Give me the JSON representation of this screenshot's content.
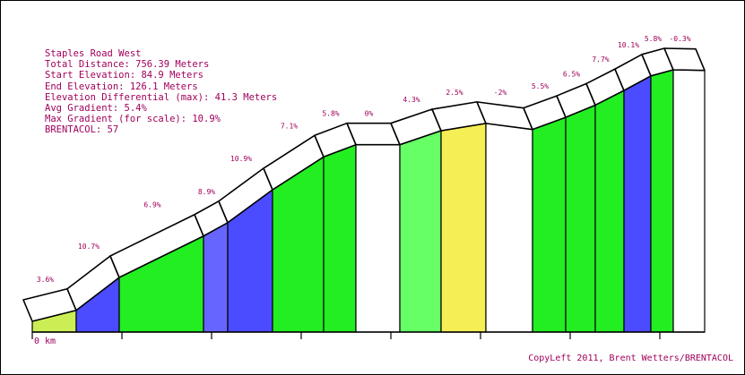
{
  "info": {
    "road_name": "Staples Road West",
    "total_distance": "Total Distance: 756.39 Meters",
    "start_elevation": "Start Elevation: 84.9 Meters",
    "end_elevation": "End Elevation: 126.1 Meters",
    "elevation_differential": "Elevation Differential (max): 41.3 Meters",
    "avg_gradient": "Avg Gradient: 5.4%",
    "max_gradient": "Max Gradient (for scale): 10.9%",
    "brentacol": "BRENTACOL: 57"
  },
  "credit": "CopyLeft 2011, Brent Wetters/BRENTACOL",
  "chart_data": {
    "type": "area",
    "x_unit": "m",
    "y_unit": "m",
    "start_label": "0 km",
    "ylim": [
      84.9,
      126.2
    ],
    "segments": [
      {
        "label": "3.6%",
        "gradient": 3.6,
        "color": "#ccee55",
        "from_elev": 84.9,
        "to_elev": 86.7
      },
      {
        "label": "10.7%",
        "gradient": 10.7,
        "color": "#4b4bff",
        "from_elev": 86.7,
        "to_elev": 92.1
      },
      {
        "label": "6.9%",
        "gradient": 6.9,
        "color": "#22ee22",
        "from_elev": 92.1,
        "to_elev": 98.9
      },
      {
        "label": "8.9%",
        "gradient": 8.9,
        "color": "#6666ff",
        "from_elev": 98.9,
        "to_elev": 101.1
      },
      {
        "label": "10.9%",
        "gradient": 10.9,
        "color": "#4b4bff",
        "from_elev": 101.1,
        "to_elev": 106.5
      },
      {
        "label": "7.1%",
        "gradient": 7.1,
        "color": "#22ee22",
        "from_elev": 106.5,
        "to_elev": 111.9
      },
      {
        "label": "5.8%",
        "gradient": 5.8,
        "color": "#22ee22",
        "from_elev": 111.9,
        "to_elev": 113.9
      },
      {
        "label": "0%",
        "gradient": 0.0,
        "color": "#ffffff",
        "from_elev": 113.9,
        "to_elev": 113.9
      },
      {
        "label": "4.3%",
        "gradient": 4.3,
        "color": "#66ff66",
        "from_elev": 113.9,
        "to_elev": 116.2
      },
      {
        "label": "2.5%",
        "gradient": 2.5,
        "color": "#f5ee55",
        "from_elev": 116.2,
        "to_elev": 117.4
      },
      {
        "label": "-2%",
        "gradient": -2.0,
        "color": "#ffffff",
        "from_elev": 117.4,
        "to_elev": 116.4
      },
      {
        "label": "5.5%",
        "gradient": 5.5,
        "color": "#22ee22",
        "from_elev": 116.4,
        "to_elev": 118.4
      },
      {
        "label": "6.5%",
        "gradient": 6.5,
        "color": "#22ee22",
        "from_elev": 118.4,
        "to_elev": 120.4
      },
      {
        "label": "7.7%",
        "gradient": 7.7,
        "color": "#22ee22",
        "from_elev": 120.4,
        "to_elev": 122.8
      },
      {
        "label": "10.1%",
        "gradient": 10.1,
        "color": "#4b4bff",
        "from_elev": 122.8,
        "to_elev": 125.2
      },
      {
        "label": "5.8%",
        "gradient": 5.8,
        "color": "#22ee22",
        "from_elev": 125.2,
        "to_elev": 126.2
      },
      {
        "label": "-0.3%",
        "gradient": -0.3,
        "color": "#ffffff",
        "from_elev": 126.2,
        "to_elev": 126.1
      }
    ]
  }
}
